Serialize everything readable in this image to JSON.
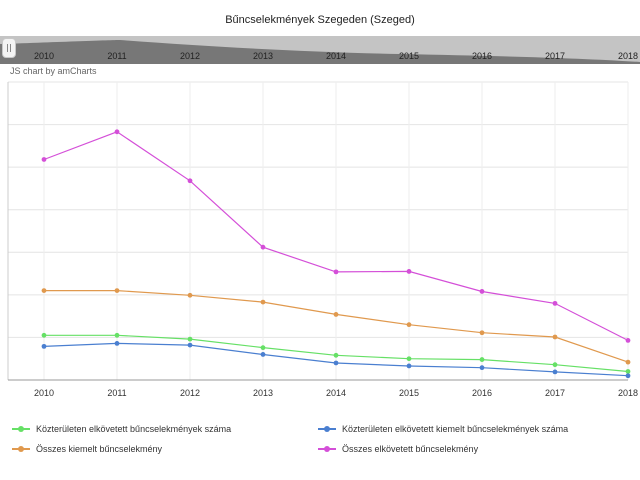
{
  "chart_data": {
    "type": "line",
    "title": "Bűncselekmények Szegeden (Szeged)",
    "credit": "JS chart by amCharts",
    "categories": [
      "2010",
      "2011",
      "2012",
      "2013",
      "2014",
      "2015",
      "2016",
      "2017",
      "2018"
    ],
    "ylim": [
      0,
      7000
    ],
    "grid": true,
    "legend_position": "bottom",
    "series": [
      {
        "name": "Közterületen elkövetett bűncselekmények száma",
        "color": "#66e066",
        "values": [
          1050,
          1050,
          960,
          760,
          580,
          500,
          480,
          360,
          200
        ]
      },
      {
        "name": "Közterületen elkövetett kiemelt bűncselekmények száma",
        "color": "#4a7fd0",
        "values": [
          790,
          860,
          820,
          600,
          400,
          330,
          290,
          190,
          100
        ]
      },
      {
        "name": "Összes kiemelt bűncselekmény",
        "color": "#e0994e",
        "values": [
          2100,
          2100,
          1990,
          1830,
          1540,
          1300,
          1110,
          1010,
          420
        ]
      },
      {
        "name": "Összes elkövetett bűncselekmény",
        "color": "#d44fd8",
        "values": [
          5180,
          5830,
          4680,
          3120,
          2540,
          2550,
          2080,
          1800,
          930
        ]
      }
    ]
  }
}
